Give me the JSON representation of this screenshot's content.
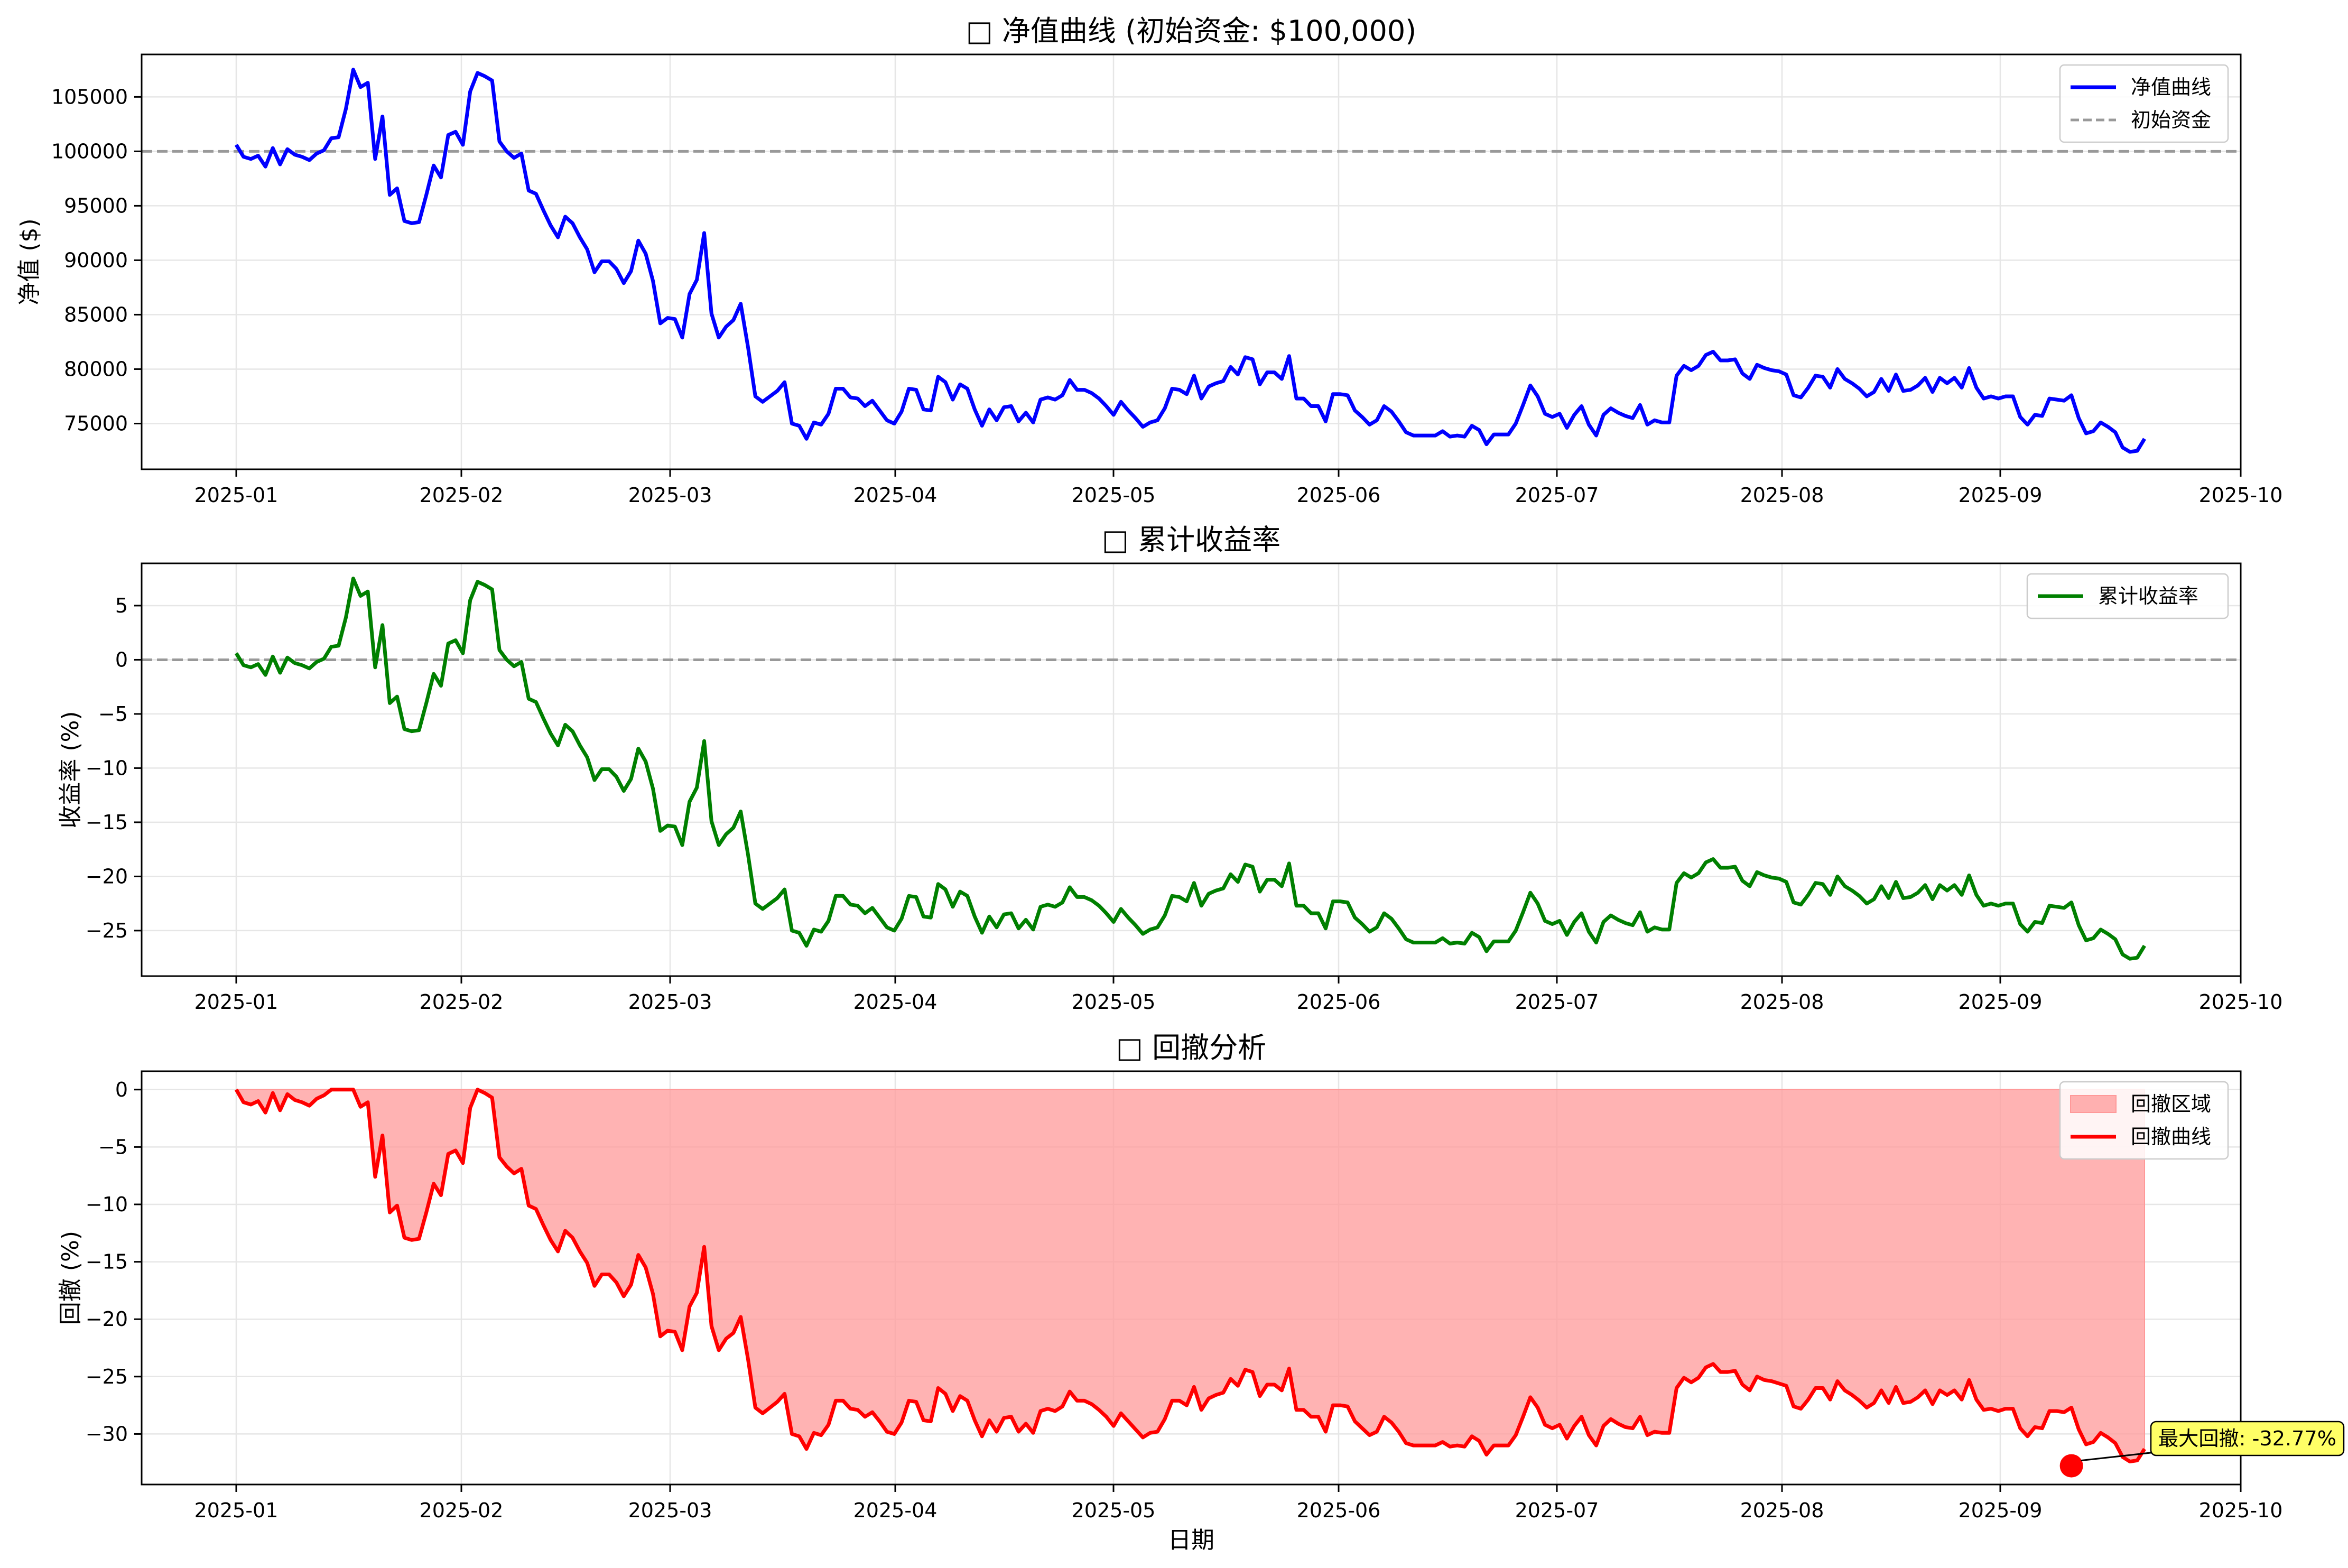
{
  "chart_data": [
    {
      "type": "line",
      "title": "□ 净值曲线 (初始资金: $100,000)",
      "xlabel": "",
      "ylabel": "净值 ($)",
      "x_ticks": [
        "2025-01",
        "2025-02",
        "2025-03",
        "2025-04",
        "2025-05",
        "2025-06",
        "2025-07",
        "2025-08",
        "2025-09",
        "2025-10"
      ],
      "y_ticks": [
        105000,
        100000,
        95000,
        90000,
        85000,
        80000,
        75000
      ],
      "ylim": [
        70800,
        108900
      ],
      "grid": true,
      "legend_position": "upper-right",
      "reference_line": {
        "value": 100000,
        "label": "初始资金",
        "color": "#999999",
        "style": "dashed"
      },
      "series": [
        {
          "name": "净值曲线",
          "color": "#0000ff",
          "values": [
            100600,
            99500,
            99300,
            99600,
            98600,
            100300,
            98800,
            100200,
            99700,
            99500,
            99200,
            99800,
            100100,
            101200,
            101300,
            103900,
            107500,
            105900,
            106300,
            99300,
            103200,
            96000,
            96600,
            93600,
            93400,
            93500,
            96000,
            98700,
            97600,
            101500,
            101800,
            100600,
            105500,
            107200,
            106900,
            106500,
            100900,
            100000,
            99400,
            99800,
            96400,
            96100,
            94600,
            93200,
            92100,
            94000,
            93400,
            92100,
            91000,
            88900,
            89900,
            89900,
            89200,
            87900,
            89000,
            91800,
            90600,
            88100,
            84200,
            84700,
            84600,
            82900,
            86900,
            88200,
            92500,
            85100,
            82900,
            83900,
            84500,
            86000,
            82000,
            77500,
            77000,
            77500,
            78000,
            78800,
            75000,
            74800,
            73600,
            75100,
            74900,
            75900,
            78200,
            78200,
            77400,
            77300,
            76600,
            77100,
            76200,
            75300,
            75000,
            76100,
            78200,
            78100,
            76300,
            76200,
            79300,
            78800,
            77200,
            78600,
            78200,
            76300,
            74800,
            76300,
            75300,
            76500,
            76600,
            75200,
            76000,
            75100,
            77200,
            77400,
            77200,
            77600,
            79000,
            78100,
            78100,
            77800,
            77300,
            76600,
            75800,
            77000,
            76200,
            75500,
            74700,
            75100,
            75300,
            76400,
            78200,
            78100,
            77700,
            79400,
            77300,
            78400,
            78700,
            78900,
            80200,
            79500,
            81100,
            80900,
            78600,
            79700,
            79700,
            79100,
            81200,
            77300,
            77300,
            76600,
            76600,
            75200,
            77700,
            77700,
            77600,
            76200,
            75600,
            74900,
            75300,
            76600,
            76100,
            75200,
            74200,
            73900,
            73900,
            73900,
            73900,
            74300,
            73800,
            73900,
            73800,
            74800,
            74400,
            73100,
            74000,
            74000,
            74000,
            75000,
            76700,
            78500,
            77500,
            75900,
            75600,
            75900,
            74600,
            75800,
            76600,
            74900,
            73900,
            75800,
            76400,
            76000,
            75700,
            75500,
            76700,
            74900,
            75300,
            75100,
            75100,
            79400,
            80300,
            79900,
            80300,
            81300,
            81600,
            80800,
            80800,
            80900,
            79600,
            79100,
            80400,
            80100,
            79900,
            79800,
            79500,
            77600,
            77400,
            78300,
            79400,
            79300,
            78300,
            80000,
            79100,
            78700,
            78200,
            77500,
            77900,
            79100,
            78000,
            79500,
            78000,
            78100,
            78500,
            79200,
            77900,
            79200,
            78700,
            79200,
            78300,
            80100,
            78300,
            77300,
            77500,
            77300,
            77500,
            77500,
            75600,
            74900,
            75800,
            75700,
            77300,
            77200,
            77100,
            77600,
            75500,
            74100,
            74300,
            75100,
            74700,
            74200,
            72800,
            72400,
            72500,
            73600
          ]
        }
      ]
    },
    {
      "type": "line",
      "title": "□ 累计收益率",
      "xlabel": "",
      "ylabel": "收益率 (%)",
      "x_ticks": [
        "2025-01",
        "2025-02",
        "2025-03",
        "2025-04",
        "2025-05",
        "2025-06",
        "2025-07",
        "2025-08",
        "2025-09",
        "2025-10"
      ],
      "y_ticks": [
        5,
        0,
        -5,
        -10,
        -15,
        -20,
        -25
      ],
      "ylim": [
        -29.2,
        8.9
      ],
      "grid": true,
      "legend_position": "upper-right",
      "reference_line": {
        "value": 0,
        "color": "#999999",
        "style": "dashed"
      },
      "series": [
        {
          "name": "累计收益率",
          "color": "#008000",
          "values": [
            0.6,
            -0.5,
            -0.7,
            -0.4,
            -1.4,
            0.3,
            -1.2,
            0.2,
            -0.3,
            -0.5,
            -0.8,
            -0.2,
            0.1,
            1.2,
            1.3,
            3.9,
            7.5,
            5.9,
            6.3,
            -0.7,
            3.2,
            -4.0,
            -3.4,
            -6.4,
            -6.6,
            -6.5,
            -4.0,
            -1.3,
            -2.4,
            1.5,
            1.8,
            0.6,
            5.5,
            7.2,
            6.9,
            6.5,
            0.9,
            0.0,
            -0.6,
            -0.2,
            -3.6,
            -3.9,
            -5.4,
            -6.8,
            -7.9,
            -6.0,
            -6.6,
            -7.9,
            -9.0,
            -11.1,
            -10.1,
            -10.1,
            -10.8,
            -12.1,
            -11.0,
            -8.2,
            -9.4,
            -11.9,
            -15.8,
            -15.3,
            -15.4,
            -17.1,
            -13.1,
            -11.8,
            -7.5,
            -14.9,
            -17.1,
            -16.1,
            -15.5,
            -14.0,
            -18.0,
            -22.5,
            -23.0,
            -22.5,
            -22.0,
            -21.2,
            -25.0,
            -25.2,
            -26.4,
            -24.9,
            -25.1,
            -24.1,
            -21.8,
            -21.8,
            -22.6,
            -22.7,
            -23.4,
            -22.9,
            -23.8,
            -24.7,
            -25.0,
            -23.9,
            -21.8,
            -21.9,
            -23.7,
            -23.8,
            -20.7,
            -21.2,
            -22.8,
            -21.4,
            -21.8,
            -23.7,
            -25.2,
            -23.7,
            -24.7,
            -23.5,
            -23.4,
            -24.8,
            -24.0,
            -24.9,
            -22.8,
            -22.6,
            -22.8,
            -22.4,
            -21.0,
            -21.9,
            -21.9,
            -22.2,
            -22.7,
            -23.4,
            -24.2,
            -23.0,
            -23.8,
            -24.5,
            -25.3,
            -24.9,
            -24.7,
            -23.6,
            -21.8,
            -21.9,
            -22.3,
            -20.6,
            -22.7,
            -21.6,
            -21.3,
            -21.1,
            -19.8,
            -20.5,
            -18.9,
            -19.1,
            -21.4,
            -20.3,
            -20.3,
            -20.9,
            -18.8,
            -22.7,
            -22.7,
            -23.4,
            -23.4,
            -24.8,
            -22.3,
            -22.3,
            -22.4,
            -23.8,
            -24.4,
            -25.1,
            -24.7,
            -23.4,
            -23.9,
            -24.8,
            -25.8,
            -26.1,
            -26.1,
            -26.1,
            -26.1,
            -25.7,
            -26.2,
            -26.1,
            -26.2,
            -25.2,
            -25.6,
            -26.9,
            -26.0,
            -26.0,
            -26.0,
            -25.0,
            -23.3,
            -21.5,
            -22.5,
            -24.1,
            -24.4,
            -24.1,
            -25.4,
            -24.2,
            -23.4,
            -25.1,
            -26.1,
            -24.2,
            -23.6,
            -24.0,
            -24.3,
            -24.5,
            -23.3,
            -25.1,
            -24.7,
            -24.9,
            -24.9,
            -20.6,
            -19.7,
            -20.1,
            -19.7,
            -18.7,
            -18.4,
            -19.2,
            -19.2,
            -19.1,
            -20.4,
            -20.9,
            -19.6,
            -19.9,
            -20.1,
            -20.2,
            -20.5,
            -22.4,
            -22.6,
            -21.7,
            -20.6,
            -20.7,
            -21.7,
            -20.0,
            -20.9,
            -21.3,
            -21.8,
            -22.5,
            -22.1,
            -20.9,
            -22.0,
            -20.5,
            -22.0,
            -21.9,
            -21.5,
            -20.8,
            -22.1,
            -20.8,
            -21.3,
            -20.8,
            -21.7,
            -19.9,
            -21.7,
            -22.7,
            -22.5,
            -22.7,
            -22.5,
            -22.5,
            -24.4,
            -25.1,
            -24.2,
            -24.3,
            -22.7,
            -22.8,
            -22.9,
            -22.4,
            -24.5,
            -25.9,
            -25.7,
            -24.9,
            -25.3,
            -25.8,
            -27.2,
            -27.6,
            -27.5,
            -26.4
          ]
        }
      ]
    },
    {
      "type": "area",
      "title": "□ 回撤分析",
      "xlabel": "日期",
      "ylabel": "回撤 (%)",
      "x_ticks": [
        "2025-01",
        "2025-02",
        "2025-03",
        "2025-04",
        "2025-05",
        "2025-06",
        "2025-07",
        "2025-08",
        "2025-09",
        "2025-10"
      ],
      "y_ticks": [
        0,
        -5,
        -10,
        -15,
        -20,
        -25,
        -30
      ],
      "ylim": [
        -34.4,
        1.6
      ],
      "grid": true,
      "legend_position": "upper-right",
      "annotation": {
        "text": "最大回撤: -32.77%",
        "value": -32.77,
        "index": 251
      },
      "series": [
        {
          "name": "回撤区域",
          "color": "#ff9999",
          "kind": "fill"
        },
        {
          "name": "回撤曲线",
          "color": "#ff0000",
          "values": [
            0.0,
            -1.1,
            -1.3,
            -1.0,
            -2.0,
            -0.3,
            -1.8,
            -0.4,
            -0.9,
            -1.1,
            -1.4,
            -0.8,
            -0.5,
            0.0,
            0.0,
            0.0,
            0.0,
            -1.5,
            -1.1,
            -7.6,
            -4.0,
            -10.7,
            -10.1,
            -12.9,
            -13.1,
            -13.0,
            -10.7,
            -8.2,
            -9.2,
            -5.6,
            -5.3,
            -6.4,
            -1.6,
            0.0,
            -0.3,
            -0.7,
            -5.9,
            -6.7,
            -7.3,
            -6.9,
            -10.1,
            -10.4,
            -11.8,
            -13.1,
            -14.1,
            -12.3,
            -12.9,
            -14.1,
            -15.1,
            -17.1,
            -16.1,
            -16.1,
            -16.8,
            -18.0,
            -17.0,
            -14.4,
            -15.5,
            -17.8,
            -21.5,
            -21.0,
            -21.1,
            -22.7,
            -18.9,
            -17.7,
            -13.7,
            -20.6,
            -22.7,
            -21.7,
            -21.2,
            -19.8,
            -23.5,
            -27.7,
            -28.2,
            -27.7,
            -27.2,
            -26.5,
            -30.0,
            -30.2,
            -31.3,
            -29.9,
            -30.1,
            -29.2,
            -27.1,
            -27.1,
            -27.8,
            -27.9,
            -28.5,
            -28.1,
            -28.9,
            -29.8,
            -30.0,
            -29.0,
            -27.1,
            -27.2,
            -28.8,
            -28.9,
            -26.0,
            -26.5,
            -28.0,
            -26.7,
            -27.1,
            -28.8,
            -30.2,
            -28.8,
            -29.8,
            -28.6,
            -28.5,
            -29.8,
            -29.1,
            -29.9,
            -28.0,
            -27.8,
            -28.0,
            -27.6,
            -26.3,
            -27.1,
            -27.1,
            -27.4,
            -27.9,
            -28.5,
            -29.3,
            -28.2,
            -28.9,
            -29.6,
            -30.3,
            -29.9,
            -29.8,
            -28.7,
            -27.1,
            -27.1,
            -27.5,
            -25.9,
            -27.9,
            -26.9,
            -26.6,
            -26.4,
            -25.2,
            -25.8,
            -24.4,
            -24.6,
            -26.7,
            -25.7,
            -25.7,
            -26.2,
            -24.3,
            -27.9,
            -27.9,
            -28.5,
            -28.5,
            -29.8,
            -27.5,
            -27.5,
            -27.6,
            -28.9,
            -29.5,
            -30.1,
            -29.8,
            -28.5,
            -29.0,
            -29.8,
            -30.8,
            -31.0,
            -31.0,
            -31.0,
            -31.0,
            -30.7,
            -31.1,
            -31.0,
            -31.1,
            -30.2,
            -30.6,
            -31.8,
            -31.0,
            -31.0,
            -31.0,
            -30.1,
            -28.5,
            -26.8,
            -27.7,
            -29.2,
            -29.5,
            -29.2,
            -30.4,
            -29.3,
            -28.5,
            -30.1,
            -31.0,
            -29.3,
            -28.7,
            -29.1,
            -29.4,
            -29.5,
            -28.5,
            -30.1,
            -29.8,
            -29.9,
            -29.9,
            -26.0,
            -25.1,
            -25.5,
            -25.1,
            -24.2,
            -23.9,
            -24.6,
            -24.6,
            -24.5,
            -25.7,
            -26.2,
            -25.0,
            -25.3,
            -25.4,
            -25.6,
            -25.8,
            -27.6,
            -27.8,
            -27.0,
            -26.0,
            -26.0,
            -27.0,
            -25.4,
            -26.2,
            -26.6,
            -27.1,
            -27.7,
            -27.3,
            -26.2,
            -27.3,
            -25.9,
            -27.3,
            -27.2,
            -26.8,
            -26.2,
            -27.4,
            -26.2,
            -26.6,
            -26.2,
            -27.0,
            -25.3,
            -27.0,
            -27.9,
            -27.8,
            -28.0,
            -27.8,
            -27.8,
            -29.5,
            -30.2,
            -29.4,
            -29.5,
            -28.0,
            -28.0,
            -28.1,
            -27.7,
            -29.6,
            -30.9,
            -30.7,
            -29.9,
            -30.3,
            -30.8,
            -32.0,
            -32.4,
            -32.3,
            -31.3
          ]
        }
      ]
    }
  ]
}
